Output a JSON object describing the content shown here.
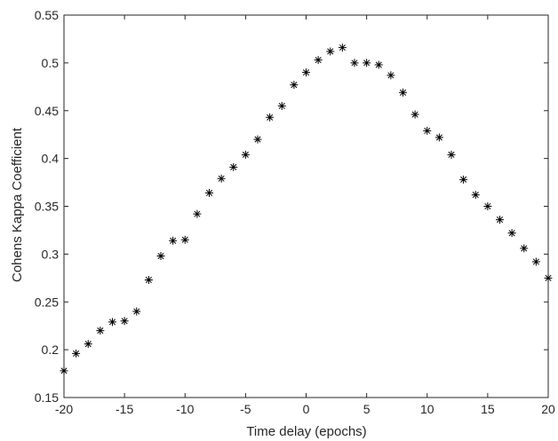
{
  "chart_data": {
    "type": "scatter",
    "title": "",
    "xlabel": "Time delay (epochs)",
    "ylabel": "Cohens Kappa Coefficient",
    "xlim": [
      -20,
      20
    ],
    "ylim": [
      0.15,
      0.55
    ],
    "xticks": [
      -20,
      -15,
      -10,
      -5,
      0,
      5,
      10,
      15,
      20
    ],
    "yticks": [
      0.15,
      0.2,
      0.25,
      0.3,
      0.35,
      0.4,
      0.45,
      0.5,
      0.55
    ],
    "xtick_labels": [
      "-20",
      "-15",
      "-10",
      "-5",
      "0",
      "5",
      "10",
      "15",
      "20"
    ],
    "ytick_labels": [
      "0.15",
      "0.2",
      "0.25",
      "0.3",
      "0.35",
      "0.4",
      "0.45",
      "0.5",
      "0.55"
    ],
    "grid": false,
    "marker": "asterisk",
    "series": [
      {
        "x": [
          -20,
          -19,
          -18,
          -17,
          -16,
          -15,
          -14,
          -13,
          -12,
          -11,
          -10,
          -9,
          -8,
          -7,
          -6,
          -5,
          -4,
          -3,
          -2,
          -1,
          0,
          1,
          2,
          3,
          4,
          5,
          6,
          7,
          8,
          9,
          10,
          11,
          12,
          13,
          14,
          15,
          16,
          17,
          18,
          19,
          20
        ],
        "y": [
          0.178,
          0.196,
          0.206,
          0.22,
          0.229,
          0.23,
          0.24,
          0.273,
          0.298,
          0.314,
          0.315,
          0.342,
          0.364,
          0.379,
          0.391,
          0.404,
          0.42,
          0.443,
          0.455,
          0.477,
          0.49,
          0.503,
          0.512,
          0.516,
          0.5,
          0.5,
          0.498,
          0.487,
          0.469,
          0.446,
          0.429,
          0.422,
          0.404,
          0.378,
          0.362,
          0.35,
          0.336,
          0.322,
          0.306,
          0.292,
          0.275
        ]
      }
    ]
  }
}
